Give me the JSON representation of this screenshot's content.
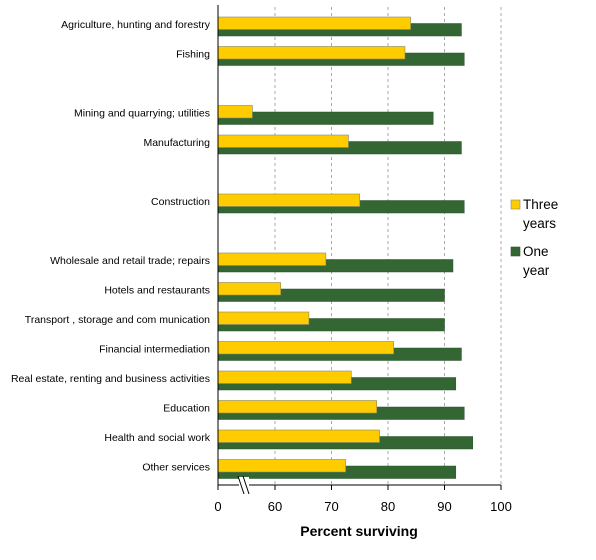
{
  "chart_data": {
    "type": "bar",
    "orientation": "horizontal",
    "categories": [
      "Agriculture, hunting and forestry",
      "Fishing",
      "",
      "Mining and quarrying; utilities",
      "Manufacturing",
      "",
      "Construction",
      "",
      "Wholesale and retail trade; repairs",
      "Hotels and restaurants",
      "Transport , storage and com munication",
      "Financial intermediation",
      "Real estate, renting and business activities",
      "Education",
      "Health and social work",
      "Other services"
    ],
    "series": [
      {
        "name": "Three years",
        "color": "#ffcc00",
        "values": [
          84,
          83,
          null,
          56,
          73,
          null,
          75,
          null,
          69,
          61,
          66,
          81,
          73.5,
          78,
          78.5,
          72.5
        ]
      },
      {
        "name": "One year",
        "color": "#336633",
        "values": [
          93,
          93.5,
          null,
          88,
          93,
          null,
          93.5,
          null,
          91.5,
          90,
          90,
          93,
          92,
          93.5,
          95,
          92
        ]
      }
    ],
    "xlabel": "Percent surviving",
    "xlim": [
      50,
      100
    ],
    "xticks": [
      "0",
      "60",
      "70",
      "80",
      "90",
      "100"
    ],
    "axis_break": true,
    "grid": "vertical dashed",
    "legend_position": "right",
    "legend": [
      {
        "label_lines": [
          "Three",
          "years"
        ],
        "color": "#ffcc00"
      },
      {
        "label_lines": [
          "One",
          "year"
        ],
        "color": "#336633"
      }
    ]
  }
}
